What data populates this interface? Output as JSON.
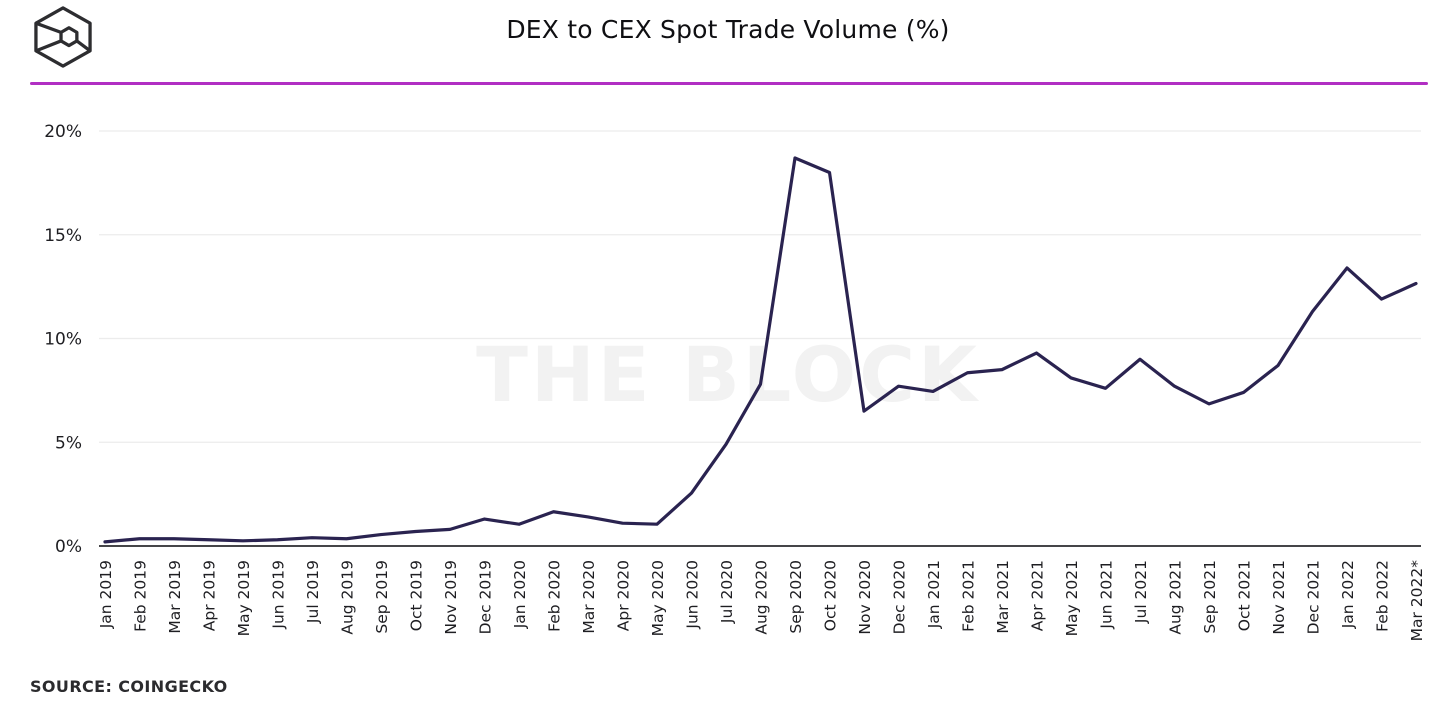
{
  "header": {
    "title": "DEX to CEX Spot Trade Volume (%)",
    "logo_name": "the-block-cube-logo",
    "divider_color": "#b12fc3"
  },
  "watermark": "THE BLOCK",
  "footer": {
    "source": "SOURCE: COINGECKO"
  },
  "chart_data": {
    "type": "line",
    "title": "DEX to CEX Spot Trade Volume (%)",
    "xlabel": "",
    "ylabel": "",
    "ylim": [
      0,
      20
    ],
    "grid": true,
    "legend": false,
    "line_color": "#2a2350",
    "gridline_color": "#ececec",
    "axis_color": "#454548",
    "yticks": {
      "values": [
        0,
        5,
        10,
        15,
        20
      ],
      "labels": [
        "0%",
        "5%",
        "10%",
        "15%",
        "20%"
      ]
    },
    "categories": [
      "Jan 2019",
      "Feb 2019",
      "Mar 2019",
      "Apr 2019",
      "May 2019",
      "Jun 2019",
      "Jul 2019",
      "Aug 2019",
      "Sep 2019",
      "Oct 2019",
      "Nov 2019",
      "Dec 2019",
      "Jan 2020",
      "Feb 2020",
      "Mar 2020",
      "Apr 2020",
      "May 2020",
      "Jun 2020",
      "Jul 2020",
      "Aug 2020",
      "Sep 2020",
      "Oct 2020",
      "Nov 2020",
      "Dec 2020",
      "Jan 2021",
      "Feb 2021",
      "Mar 2021",
      "Apr 2021",
      "May 2021",
      "Jun 2021",
      "Jul 2021",
      "Aug 2021",
      "Sep 2021",
      "Oct 2021",
      "Nov 2021",
      "Dec 2021",
      "Jan 2022",
      "Feb 2022",
      "Mar 2022*"
    ],
    "series": [
      {
        "name": "DEX to CEX spot trade volume %",
        "values": [
          0.2,
          0.35,
          0.35,
          0.3,
          0.25,
          0.3,
          0.4,
          0.35,
          0.55,
          0.7,
          0.8,
          1.3,
          1.05,
          1.65,
          1.4,
          1.1,
          1.05,
          2.55,
          4.9,
          7.8,
          18.7,
          18.0,
          6.5,
          7.7,
          7.45,
          8.35,
          8.5,
          9.3,
          8.1,
          7.6,
          9.0,
          7.7,
          6.85,
          7.4,
          8.7,
          11.3,
          13.4,
          11.9,
          12.65
        ]
      }
    ]
  }
}
